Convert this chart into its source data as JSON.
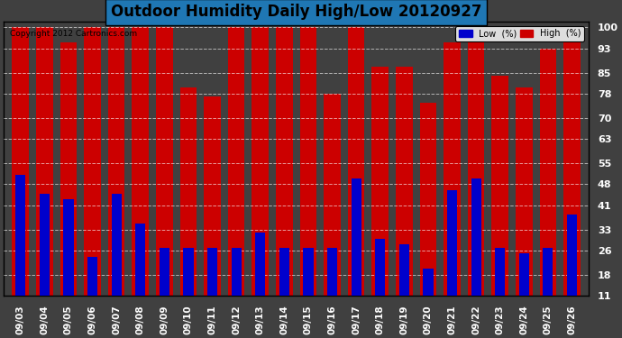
{
  "title": "Outdoor Humidity Daily High/Low 20120927",
  "copyright": "Copyright 2012 Cartronics.com",
  "dates": [
    "09/03",
    "09/04",
    "09/05",
    "09/06",
    "09/07",
    "09/08",
    "09/09",
    "09/10",
    "09/11",
    "09/12",
    "09/13",
    "09/14",
    "09/15",
    "09/16",
    "09/17",
    "09/18",
    "09/19",
    "09/20",
    "09/21",
    "09/22",
    "09/23",
    "09/24",
    "09/25",
    "09/26"
  ],
  "high": [
    100,
    100,
    95,
    100,
    100,
    100,
    100,
    80,
    77,
    100,
    100,
    100,
    100,
    78,
    100,
    87,
    87,
    75,
    95,
    100,
    84,
    80,
    93,
    99
  ],
  "low": [
    51,
    45,
    43,
    24,
    45,
    35,
    27,
    27,
    27,
    27,
    32,
    27,
    27,
    27,
    50,
    30,
    28,
    20,
    46,
    50,
    27,
    25,
    27,
    38
  ],
  "high_color": "#cc0000",
  "low_color": "#0000cc",
  "bg_color": "#404040",
  "plot_bg_color": "#404040",
  "grid_color": "#ffffff",
  "yticks": [
    11,
    18,
    26,
    33,
    41,
    48,
    55,
    63,
    70,
    78,
    85,
    93,
    100
  ],
  "ymin": 11,
  "ymax": 102,
  "bar_width": 0.7,
  "title_fontsize": 12,
  "legend_low_label": "Low  (%)",
  "legend_high_label": "High  (%)"
}
